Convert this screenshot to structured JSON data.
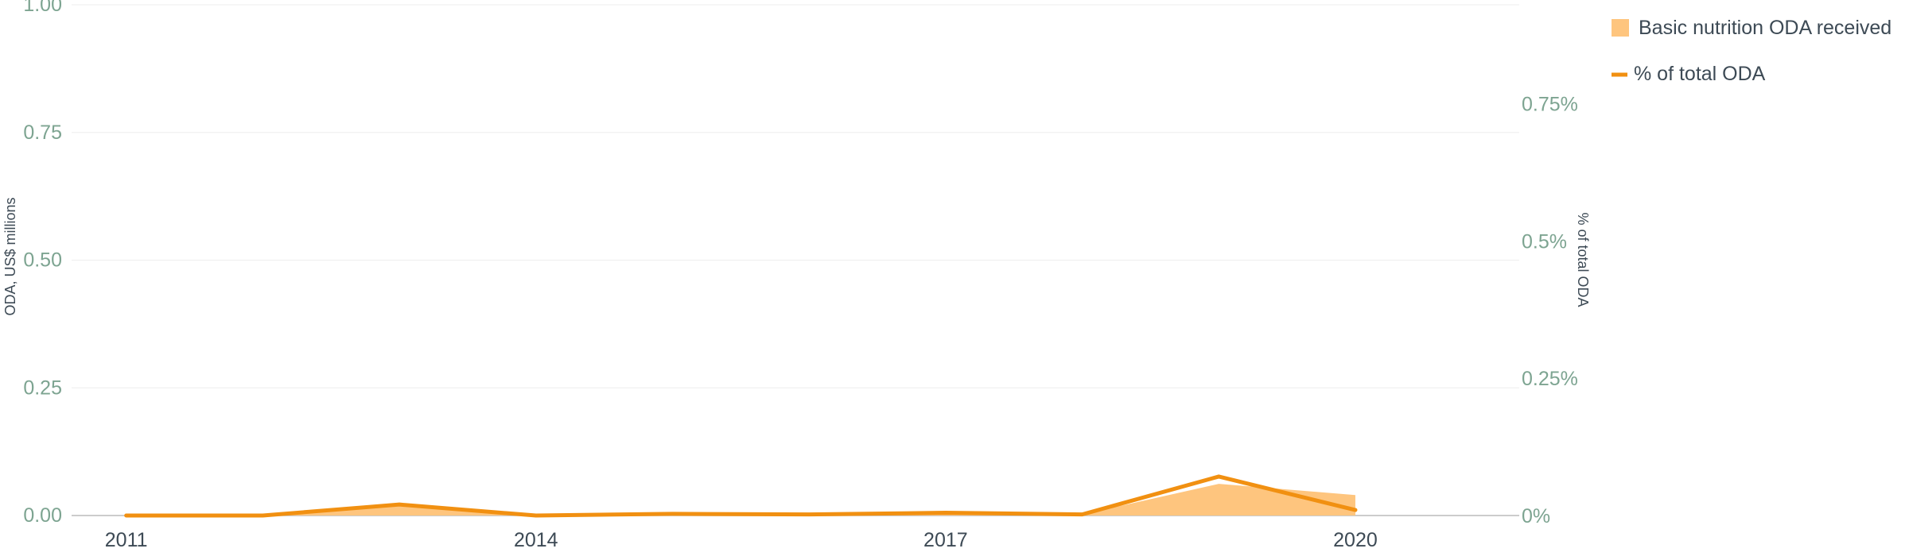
{
  "chart_data": {
    "type": "area+line",
    "title": "",
    "x": [
      2011,
      2012,
      2013,
      2014,
      2015,
      2016,
      2017,
      2018,
      2019,
      2020
    ],
    "xticks": [
      "2011",
      "2014",
      "2017",
      "2020"
    ],
    "xlim": [
      2010.6,
      2021.2
    ],
    "y_left": {
      "label": "ODA, US$ millions",
      "ticks": [
        "0.00",
        "0.25",
        "0.50",
        "0.75",
        "1.00"
      ],
      "ylim": [
        0,
        1.0
      ]
    },
    "y_right": {
      "label": "% of total ODA",
      "ticks": [
        "0%",
        "0.25%",
        "0.5%",
        "0.75%"
      ],
      "ylim": [
        0,
        0.0093
      ]
    },
    "series": [
      {
        "name": "Basic nutrition ODA received",
        "kind": "area",
        "axis": "left",
        "color": "#FEC57E",
        "values": [
          0.0,
          0.0,
          0.025,
          0.0,
          0.002,
          0.001,
          0.003,
          0.002,
          0.062,
          0.04
        ]
      },
      {
        "name": "% of total ODA",
        "kind": "line",
        "axis": "right",
        "color": "#F19011",
        "values": [
          0.0,
          0.0,
          0.0002,
          0.0,
          3e-05,
          2e-05,
          5e-05,
          2e-05,
          0.00071,
          0.0001
        ]
      }
    ],
    "legend": {
      "position": "top-right",
      "entries": [
        "Basic nutrition ODA received",
        "% of total ODA"
      ]
    },
    "grid": true,
    "colors": {
      "grid": "#EEEEEE",
      "baseline": "#BBBBBB",
      "tick_text_axis": "#7DA491",
      "year_text": "#3D4A55",
      "axis_title": "#3D4A55",
      "legend_text": "#3D4A55"
    }
  }
}
